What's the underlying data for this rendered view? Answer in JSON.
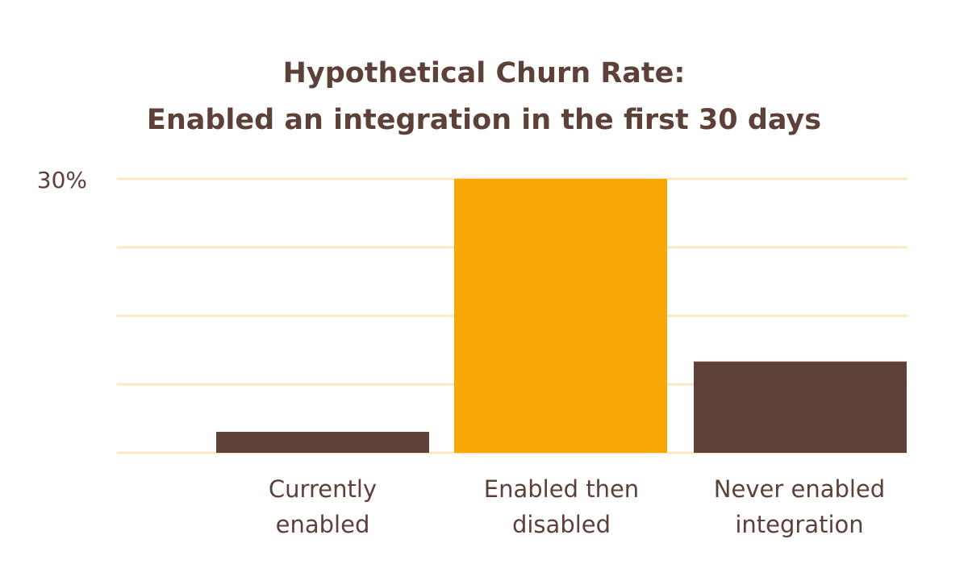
{
  "chart_data": {
    "type": "bar",
    "title_lines": [
      "Hypothetical Churn Rate:",
      "Enabled an integration in the first 30 days"
    ],
    "categories": [
      "Currently\nenabled",
      "Enabled then\ndisabled",
      "Never enabled\nintegration"
    ],
    "values": [
      2.3,
      30,
      10
    ],
    "ylim": [
      0,
      30
    ],
    "y_tick_label": "30%",
    "gridlines": [
      0,
      7.5,
      15,
      22.5,
      30
    ],
    "bar_colors": [
      "#5d4037",
      "#f9a707",
      "#5d4037"
    ],
    "grid_color": "#fbe7c4",
    "text_color": "#5d4037"
  }
}
